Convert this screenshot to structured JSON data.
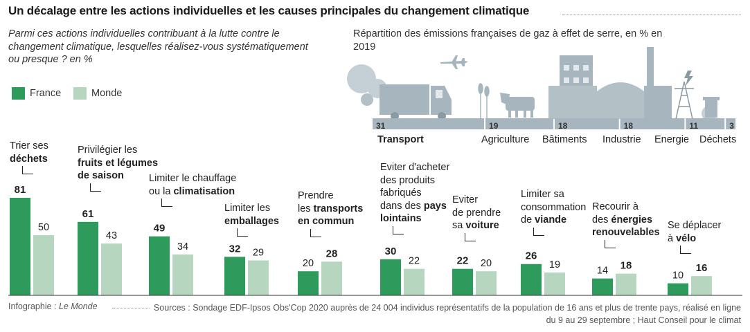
{
  "title": "Un décalage entre les actions individuelles et les causes principales du changement climatique",
  "subtitle": "Parmi ces actions individuelles contribuant à la lutte contre le changement climatique, lesquelles réalisez-vous systématiquement ou presque ? en  %",
  "legend": {
    "france": "France",
    "monde": "Monde"
  },
  "colors": {
    "france": "#2e9a5c",
    "monde": "#b6d6bf",
    "emissions_bar": "#a7b6be",
    "illustration": "#a7b6be",
    "illustration_dark": "#8a9aa3"
  },
  "chart_data": [
    {
      "type": "bar",
      "categories": [
        "Trier ses déchets",
        "Privilégier les fruits et légumes de saison",
        "Limiter le chauffage ou la climatisation",
        "Limiter les emballages",
        "Prendre les transports en commun",
        "Eviter d'acheter des produits fabriqués dans des pays lointains",
        "Eviter de prendre sa voiture",
        "Limiter sa consommation de viande",
        "Recourir à des énergies renouvelables",
        "Se déplacer à vélo"
      ],
      "series": [
        {
          "name": "France",
          "values": [
            81,
            61,
            49,
            32,
            20,
            30,
            22,
            26,
            14,
            10
          ]
        },
        {
          "name": "Monde",
          "values": [
            50,
            43,
            34,
            29,
            28,
            22,
            20,
            19,
            18,
            16
          ]
        }
      ],
      "bold_series": [
        "France",
        "France",
        "France",
        "France",
        "Monde",
        "France",
        "France",
        "France",
        "Monde",
        "Monde"
      ],
      "ylim": [
        0,
        81
      ]
    },
    {
      "type": "bar",
      "title": "Répartition des émissions françaises de gaz à effet de serre, en % en 2019",
      "categories": [
        "Transport",
        "Agriculture",
        "Bâtiments",
        "Industrie",
        "Energie",
        "Déchets"
      ],
      "values": [
        31,
        19,
        18,
        18,
        11,
        3
      ]
    }
  ],
  "labels": [
    [
      [
        "Trier ses",
        false
      ],
      [
        "\n",
        false
      ],
      [
        "déchets",
        true
      ]
    ],
    [
      [
        "Privilégier les",
        false
      ],
      [
        "\n",
        false
      ],
      [
        "fruits et légumes",
        true
      ],
      [
        "\n",
        false
      ],
      [
        "de saison",
        true
      ]
    ],
    [
      [
        "Limiter le chauffage",
        false
      ],
      [
        "\n",
        false
      ],
      [
        "ou la ",
        false
      ],
      [
        "climatisation",
        true
      ]
    ],
    [
      [
        "Limiter les",
        false
      ],
      [
        "\n",
        false
      ],
      [
        "emballages",
        true
      ]
    ],
    [
      [
        "Prendre",
        false
      ],
      [
        "\n",
        false
      ],
      [
        "les ",
        false
      ],
      [
        "transports",
        true
      ],
      [
        "\n",
        false
      ],
      [
        "en commun",
        true
      ]
    ],
    [
      [
        "Eviter d'acheter",
        false
      ],
      [
        "\n",
        false
      ],
      [
        "des produits",
        false
      ],
      [
        "\n",
        false
      ],
      [
        "fabriqués",
        false
      ],
      [
        "\n",
        false
      ],
      [
        "dans des ",
        false
      ],
      [
        "pays",
        true
      ],
      [
        "\n",
        false
      ],
      [
        "lointains",
        true
      ]
    ],
    [
      [
        "Eviter",
        false
      ],
      [
        "\n",
        false
      ],
      [
        "de prendre",
        false
      ],
      [
        "\n",
        false
      ],
      [
        "sa ",
        false
      ],
      [
        "voiture",
        true
      ]
    ],
    [
      [
        "Limiter sa",
        false
      ],
      [
        "\n",
        false
      ],
      [
        "consommation",
        false
      ],
      [
        "\n",
        false
      ],
      [
        "de ",
        false
      ],
      [
        "viande",
        true
      ]
    ],
    [
      [
        "Recourir à",
        false
      ],
      [
        "\n",
        false
      ],
      [
        "des ",
        false
      ],
      [
        "énergies",
        true
      ],
      [
        "\n",
        false
      ],
      [
        "renouvelables",
        true
      ]
    ],
    [
      [
        "Se déplacer",
        false
      ],
      [
        "\n",
        false
      ],
      [
        "à ",
        false
      ],
      [
        "vélo",
        true
      ]
    ]
  ],
  "footer": {
    "credit_prefix": "Infographie : ",
    "credit_source": "Le Monde",
    "sources": "Sources : Sondage EDF-Ipsos Obs'Cop 2020 auprès de 24 004 individus représentatifs de la population de 16 ans et plus de trente pays, réalisé en ligne du 9 au 29 septembre ; Haut Conseil pour le climat"
  },
  "illustration_icons": [
    "cloud-icon",
    "truck-icon",
    "airplane-icon",
    "wheat-icon",
    "cow-icon",
    "building-icon",
    "factory-icon",
    "lightning-icon",
    "pylon-icon",
    "trash-bin-icon"
  ]
}
